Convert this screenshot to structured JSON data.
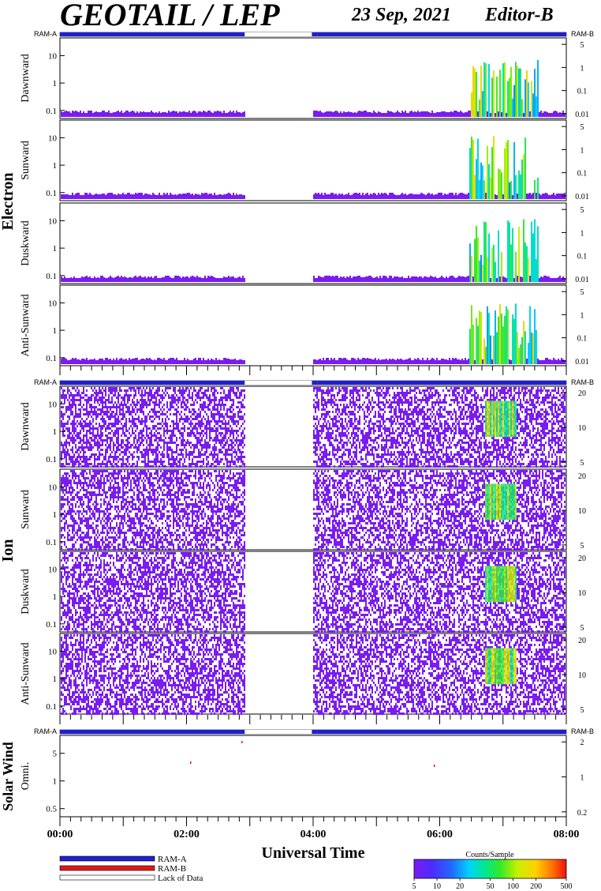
{
  "header": {
    "title": "GEOTAIL / LEP",
    "date": "23 Sep, 2021",
    "editor": "Editor-B"
  },
  "colors": {
    "ram_a": "#1f1fd0",
    "ram_b": "#e01818",
    "lack": "#ffffff",
    "spectrum_base": "#7a1cf0"
  },
  "mode_bar": {
    "left_label": "RAM-A",
    "right_label": "RAM-B",
    "segments_hours": [
      {
        "start": 0.0,
        "end": 2.92,
        "mode": "RAM-A"
      },
      {
        "start": 2.92,
        "end": 3.98,
        "mode": "Lack of Data"
      },
      {
        "start": 3.98,
        "end": 4.07,
        "mode": "RAM-A"
      },
      {
        "start": 4.07,
        "end": 8.0,
        "mode": "RAM-A"
      }
    ]
  },
  "groups": [
    {
      "id": "electron",
      "label": "Electron",
      "left_ticks": [
        "10",
        "1",
        "0.1"
      ],
      "right_ticks": [
        "5",
        "1",
        "0.1",
        "0.01"
      ],
      "panels": [
        "Dawnward",
        "Sunward",
        "Duskward",
        "Anti-Sunward"
      ]
    },
    {
      "id": "ion",
      "label": "Ion",
      "left_ticks": [
        "10",
        "1",
        "0.1"
      ],
      "right_ticks": [
        "20",
        "10",
        "5"
      ],
      "panels": [
        "Dawnward",
        "Sunward",
        "Duskward",
        "Anti-Sunward"
      ]
    },
    {
      "id": "solarwind",
      "label": "Solar Wind",
      "left_ticks": [
        "5",
        "1",
        "0.5"
      ],
      "right_ticks": [
        "2",
        "1",
        "0.2"
      ],
      "panels": [
        "Omni."
      ]
    }
  ],
  "chart_data": {
    "type": "heatmap",
    "title": "GEOTAIL / LEP",
    "xlabel": "Universal Time",
    "x_ticks": [
      "00:00",
      "02:00",
      "04:00",
      "06:00",
      "08:00"
    ],
    "x_range_hours": [
      0,
      8
    ],
    "data_gap_hours": [
      2.92,
      3.98
    ],
    "enhanced_activity_hours": [
      6.45,
      7.55
    ],
    "colorbar": {
      "label": "Counts/Sample",
      "ticks": [
        "5",
        "10",
        "20",
        "50",
        "100",
        "200",
        "500"
      ],
      "range": [
        5,
        500
      ],
      "scale": "log"
    }
  },
  "legend": {
    "items": [
      {
        "label": "RAM-A",
        "color": "#1f1fd0"
      },
      {
        "label": "RAM-B",
        "color": "#e01818"
      },
      {
        "label": "Lack of Data",
        "color": "#ffffff"
      }
    ]
  }
}
